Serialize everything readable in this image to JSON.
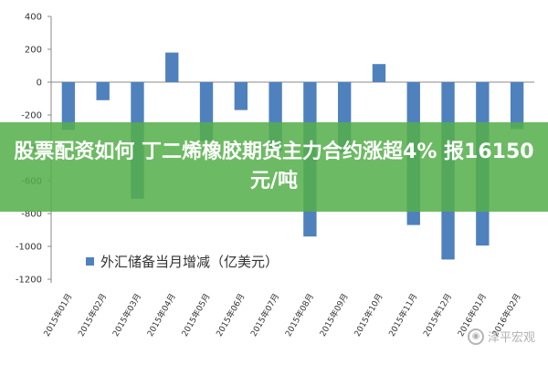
{
  "chart_data": {
    "type": "bar",
    "categories": [
      "2015年01月",
      "2015年02月",
      "2015年03月",
      "2015年04月",
      "2015年05月",
      "2015年06月",
      "2015年07月",
      "2015年08月",
      "2015年09月",
      "2015年10月",
      "2015年11月",
      "2015年12月",
      "2016年01月",
      "2016年02月"
    ],
    "series": [
      {
        "name": "外汇储备当月增减（亿美元）",
        "values": [
          -290,
          -110,
          -710,
          180,
          -360,
          -170,
          -420,
          -940,
          -430,
          110,
          -870,
          -1080,
          -995,
          -285
        ]
      }
    ],
    "ylim": [
      -1200,
      400
    ],
    "yticks": [
      400,
      200,
      0,
      -200,
      -400,
      -600,
      -800,
      -1000,
      -1200
    ],
    "grid": false,
    "legend_position": "bottom",
    "bar_color": "#4f81bd"
  },
  "banner": {
    "text": "股票配资如何 丁二烯橡胶期货主力合约涨超4% 报16150元/吨",
    "color": "#55af4b"
  },
  "watermark": {
    "text": "泽平宏观"
  }
}
